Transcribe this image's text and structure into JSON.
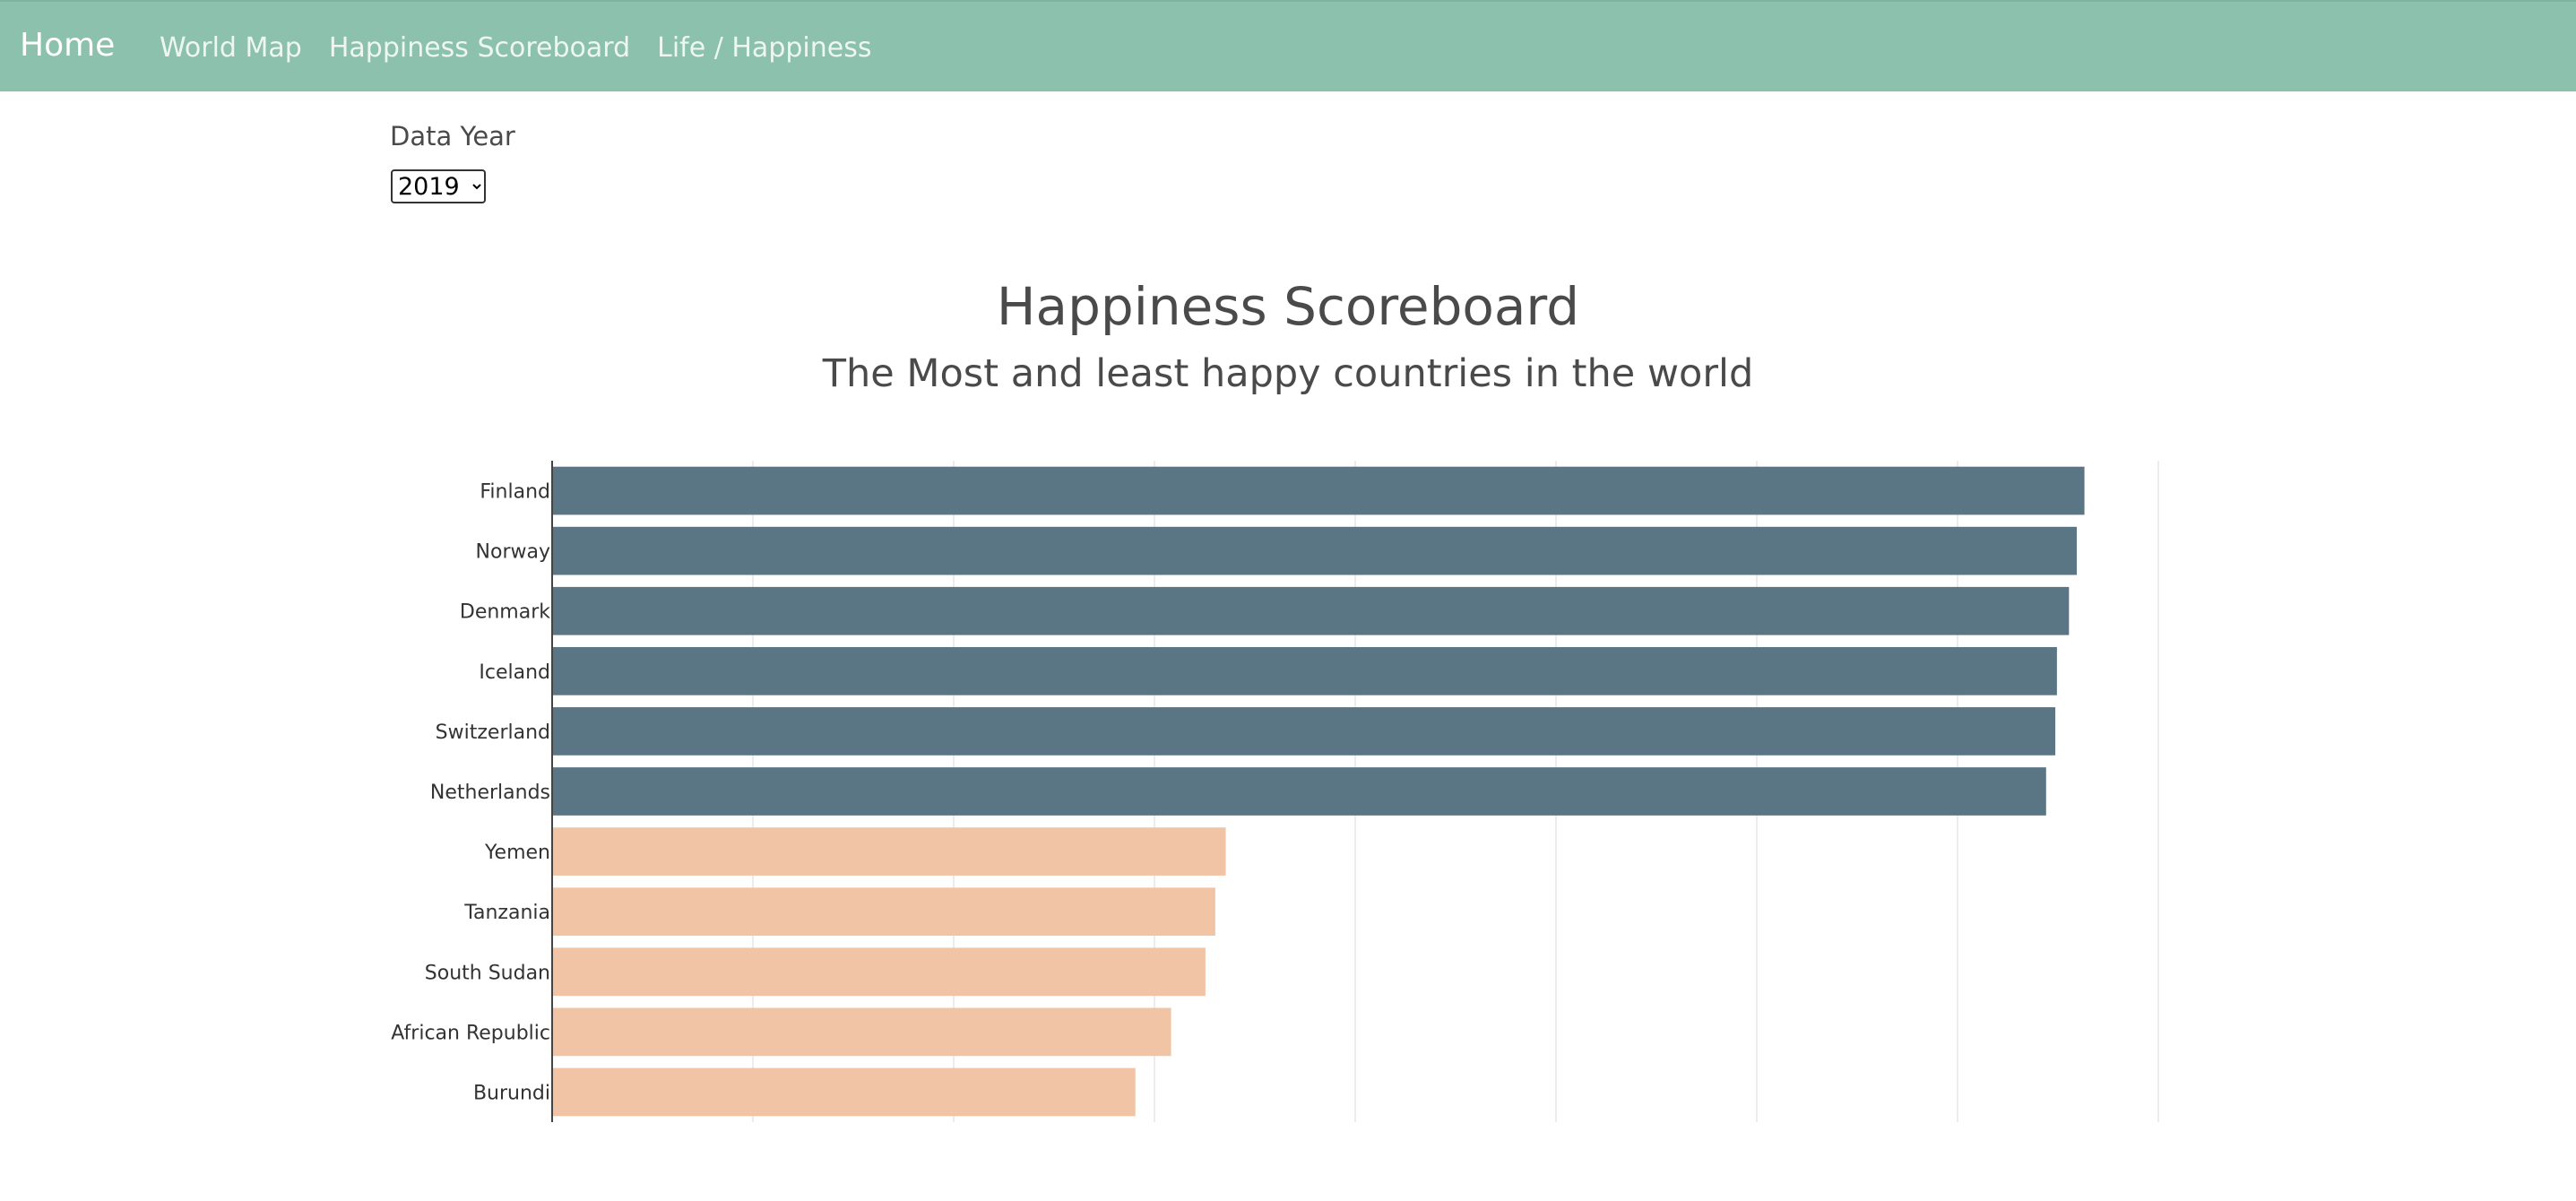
{
  "nav": {
    "brand": "Home",
    "links": [
      "World Map",
      "Happiness Scoreboard",
      "Life / Happiness"
    ]
  },
  "controls": {
    "year_label": "Data Year",
    "year_selected": "2019"
  },
  "colors": {
    "navbar": "#8bc1ad",
    "most_happy": "#5a7584",
    "least_happy": "#f1c4a6",
    "grid": "#ececec",
    "axis": "#444444"
  },
  "chart_data": {
    "type": "bar",
    "orientation": "horizontal",
    "title": "Happiness Scoreboard",
    "subtitle": "The Most and least happy countries in the world",
    "xlabel": "",
    "ylabel": "",
    "xlim": [
      0,
      8
    ],
    "grid": true,
    "categories": [
      "Finland",
      "Norway",
      "Denmark",
      "Iceland",
      "Switzerland",
      "Netherlands",
      "Yemen",
      "Tanzania",
      "South Sudan",
      "African Republic",
      "Burundi"
    ],
    "values": [
      7.632,
      7.594,
      7.555,
      7.495,
      7.487,
      7.441,
      3.355,
      3.303,
      3.254,
      3.083,
      2.905
    ],
    "groups": [
      "most",
      "most",
      "most",
      "most",
      "most",
      "most",
      "least",
      "least",
      "least",
      "least",
      "least"
    ]
  }
}
